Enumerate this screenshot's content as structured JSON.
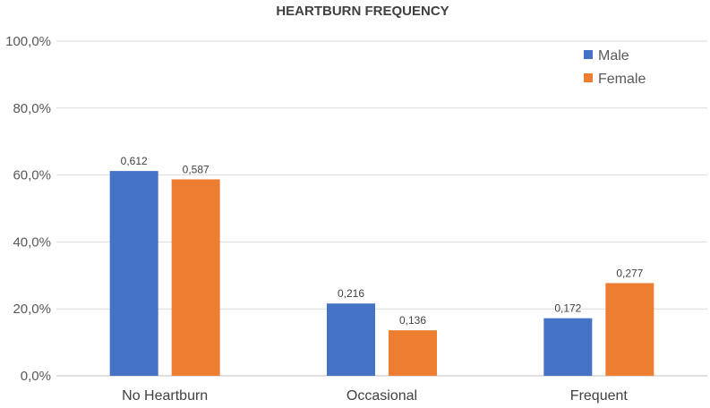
{
  "chart_data": {
    "type": "bar",
    "title": "HEARTBURN FREQUENCY",
    "categories": [
      "No Heartburn",
      "Occasional",
      "Frequent"
    ],
    "series": [
      {
        "name": "Male",
        "color": "#4472c4",
        "values": [
          0.612,
          0.216,
          0.172
        ],
        "labels": [
          "0,612",
          "0,216",
          "0,172"
        ]
      },
      {
        "name": "Female",
        "color": "#ed7d31",
        "values": [
          0.587,
          0.136,
          0.277
        ],
        "labels": [
          "0,587",
          "0,136",
          "0,277"
        ]
      }
    ],
    "ylim": [
      0,
      1
    ],
    "yticks": [
      0,
      0.2,
      0.4,
      0.6,
      0.8,
      1.0
    ],
    "ytick_labels": [
      "0,0%",
      "20,0%",
      "40,0%",
      "60,0%",
      "80,0%",
      "100,0%"
    ],
    "grid": true,
    "legend": "top-right"
  }
}
